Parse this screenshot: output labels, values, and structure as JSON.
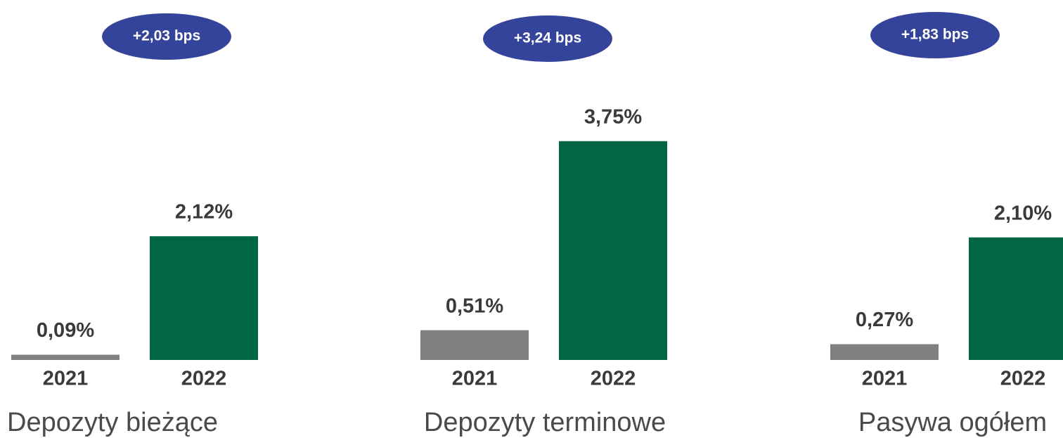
{
  "chart_data": [
    {
      "type": "bar",
      "title": "Depozyty bieżące",
      "annotation": "+2,03 bps",
      "categories": [
        "2021",
        "2022"
      ],
      "values": [
        0.09,
        2.12
      ],
      "value_labels": [
        "0,09%",
        "2,12%"
      ],
      "colors": [
        "#808080",
        "#006644"
      ],
      "annotation_color": "#34449a"
    },
    {
      "type": "bar",
      "title": "Depozyty terminowe",
      "annotation": "+3,24 bps",
      "categories": [
        "2021",
        "2022"
      ],
      "values": [
        0.51,
        3.75
      ],
      "value_labels": [
        "0,51%",
        "3,75%"
      ],
      "colors": [
        "#808080",
        "#006644"
      ],
      "annotation_color": "#34449a"
    },
    {
      "type": "bar",
      "title": "Pasywa ogółem",
      "annotation": "+1,83 bps",
      "categories": [
        "2021",
        "2022"
      ],
      "values": [
        0.27,
        2.1
      ],
      "value_labels": [
        "0,27%",
        "2,10%"
      ],
      "colors": [
        "#808080",
        "#006644"
      ],
      "annotation_color": "#34449a"
    }
  ]
}
